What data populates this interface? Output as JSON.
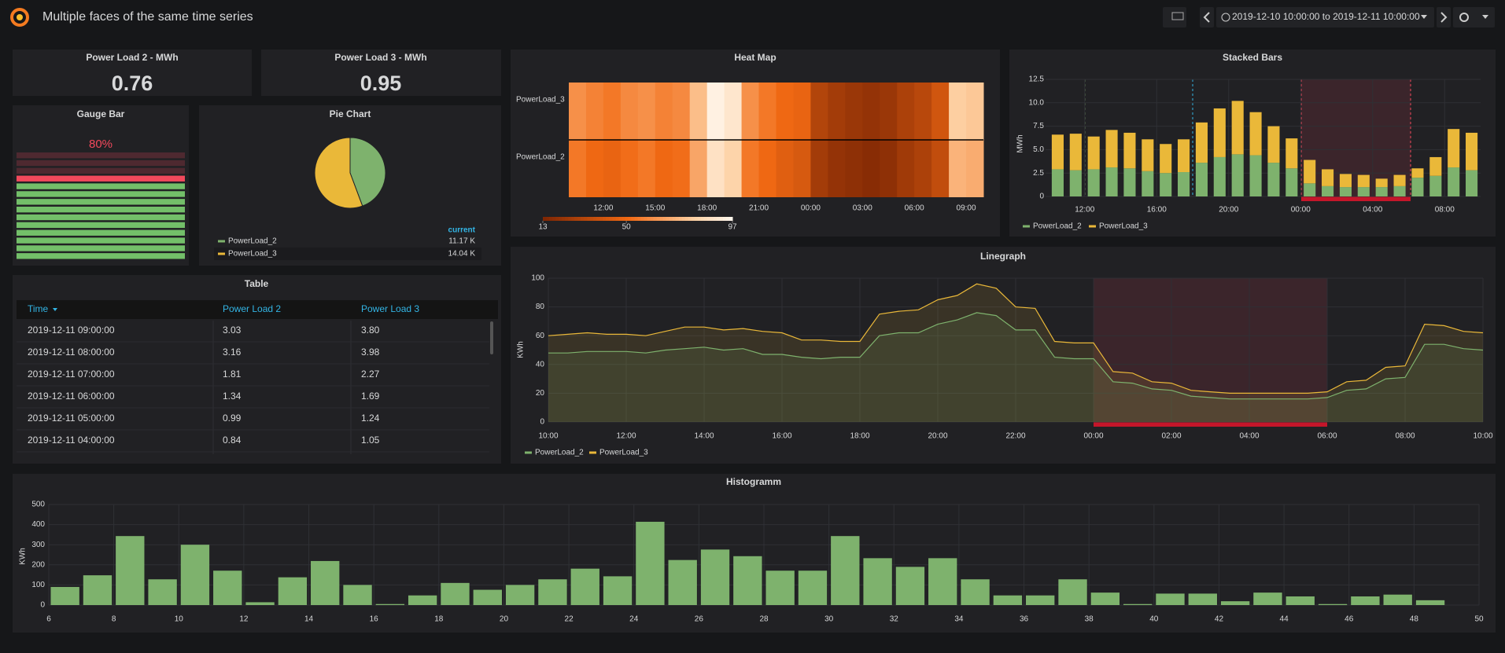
{
  "header": {
    "title": "Multiple faces of the same time series",
    "time_range": "2019-12-10 10:00:00 to 2019-12-11 10:00:00"
  },
  "stats": [
    {
      "title": "Power Load 2 - MWh",
      "value": 0.76
    },
    {
      "title": "Power Load 3 - MWh",
      "value": 0.95
    }
  ],
  "table": {
    "title": "Table",
    "columns": [
      "Time",
      "Power Load 2",
      "Power Load 3"
    ],
    "rows": [
      [
        "2019-12-11 09:00:00",
        "3.03",
        "3.80"
      ],
      [
        "2019-12-11 08:00:00",
        "3.16",
        "3.98"
      ],
      [
        "2019-12-11 07:00:00",
        "1.81",
        "2.27"
      ],
      [
        "2019-12-11 06:00:00",
        "1.34",
        "1.69"
      ],
      [
        "2019-12-11 05:00:00",
        "0.99",
        "1.24"
      ],
      [
        "2019-12-11 04:00:00",
        "0.84",
        "1.05"
      ]
    ]
  },
  "chart_data": [
    {
      "type": "bargauge",
      "title": "Gauge Bar",
      "values": [
        80
      ],
      "value_labels": [
        "80%"
      ],
      "ylim": [
        0,
        100
      ]
    },
    {
      "type": "pie",
      "title": "Pie Chart",
      "legend_header": "current",
      "categories": [
        "PowerLoad_2",
        "PowerLoad_3"
      ],
      "values": [
        11170,
        14040
      ],
      "value_labels": [
        "11.17 K",
        "14.04 K"
      ],
      "colors": [
        "#7eb26d",
        "#eab839"
      ]
    },
    {
      "type": "heatmap",
      "title": "Heat Map",
      "categories": [
        null,
        null,
        "12:00",
        null,
        null,
        "15:00",
        null,
        null,
        "18:00",
        null,
        null,
        "21:00",
        null,
        null,
        "00:00",
        null,
        null,
        "03:00",
        null,
        null,
        "06:00",
        null,
        null,
        "09:00"
      ],
      "series": [
        {
          "name": "PowerLoad_3",
          "values": [
            62,
            58,
            55,
            60,
            62,
            58,
            60,
            75,
            95,
            90,
            62,
            55,
            50,
            48,
            30,
            25,
            22,
            20,
            22,
            28,
            32,
            40,
            80,
            78
          ]
        },
        {
          "name": "PowerLoad_2",
          "values": [
            55,
            50,
            48,
            52,
            55,
            50,
            52,
            68,
            88,
            82,
            55,
            50,
            45,
            42,
            25,
            20,
            18,
            16,
            18,
            24,
            28,
            35,
            72,
            70
          ]
        }
      ],
      "zlim": [
        13,
        97
      ],
      "zticks": [
        13,
        50,
        97
      ]
    },
    {
      "type": "stacked_bar",
      "title": "Stacked Bars",
      "y_label": "MWh",
      "categories": [
        null,
        null,
        "12:00",
        null,
        null,
        null,
        "16:00",
        null,
        null,
        null,
        "20:00",
        null,
        null,
        null,
        "00:00",
        null,
        null,
        null,
        "04:00",
        null,
        null,
        null,
        "08:00",
        null
      ],
      "series": [
        {
          "name": "PowerLoad_2",
          "color": "#7eb26d",
          "values": [
            2.9,
            2.8,
            2.9,
            3.1,
            3.0,
            2.7,
            2.5,
            2.6,
            3.6,
            4.2,
            4.5,
            4.4,
            3.6,
            3.0,
            1.4,
            1.1,
            1.0,
            1.0,
            1.0,
            1.1,
            2.0,
            2.2,
            3.1,
            2.8
          ]
        },
        {
          "name": "PowerLoad_3",
          "color": "#eab839",
          "values": [
            3.7,
            3.9,
            3.5,
            4.0,
            3.8,
            3.4,
            3.1,
            3.5,
            4.3,
            5.2,
            5.7,
            4.6,
            3.9,
            3.2,
            2.5,
            1.8,
            1.4,
            1.3,
            0.9,
            1.2,
            1.0,
            2.0,
            4.1,
            4.0
          ]
        }
      ],
      "ylim": [
        0,
        12.5
      ],
      "yticks": [
        0,
        2.5,
        {
          "value": 5,
          "label": "5.0"
        },
        7.5,
        {
          "value": 10,
          "label": "10.0"
        },
        12.5
      ],
      "grid": true
    },
    {
      "type": "area_line",
      "title": "Linegraph",
      "y_label": "KWh",
      "categories": [
        "10:00",
        null,
        null,
        null,
        "12:00",
        null,
        null,
        null,
        "14:00",
        null,
        null,
        null,
        "16:00",
        null,
        null,
        null,
        "18:00",
        null,
        null,
        null,
        "20:00",
        null,
        null,
        null,
        "22:00",
        null,
        null,
        null,
        "00:00",
        null,
        null,
        null,
        "02:00",
        null,
        null,
        null,
        "04:00",
        null,
        null,
        null,
        "06:00",
        null,
        null,
        null,
        "08:00",
        null,
        null,
        null,
        "10:00"
      ],
      "series": [
        {
          "name": "PowerLoad_2",
          "color": "#7eb26d",
          "values": [
            48,
            48,
            49,
            49,
            49,
            48,
            50,
            51,
            52,
            50,
            51,
            47,
            47,
            45,
            44,
            45,
            45,
            60,
            62,
            62,
            68,
            71,
            76,
            74,
            64,
            64,
            45,
            44,
            44,
            28,
            27,
            23,
            22,
            18,
            17,
            16,
            16,
            16,
            16,
            16,
            17,
            22,
            23,
            30,
            31,
            54,
            54,
            51,
            50
          ]
        },
        {
          "name": "PowerLoad_3",
          "color": "#eab839",
          "values": [
            60,
            61,
            62,
            61,
            61,
            60,
            63,
            66,
            66,
            64,
            65,
            63,
            62,
            57,
            57,
            56,
            56,
            75,
            77,
            78,
            85,
            88,
            96,
            93,
            80,
            79,
            56,
            55,
            55,
            35,
            34,
            28,
            27,
            22,
            21,
            20,
            20,
            20,
            20,
            20,
            21,
            28,
            29,
            38,
            39,
            68,
            67,
            63,
            62
          ]
        }
      ],
      "ylim": [
        0,
        100
      ],
      "yticks": [
        0,
        20,
        40,
        60,
        80,
        100
      ],
      "grid": true
    },
    {
      "type": "histogram",
      "title": "Histogramm",
      "y_label": "KWh",
      "color": "#7eb26d",
      "bins": [
        6,
        7,
        8,
        9,
        10,
        11,
        12,
        13,
        14,
        15,
        16,
        17,
        18,
        19,
        20,
        21,
        22,
        23,
        24,
        25,
        26,
        27,
        28,
        29,
        30,
        31,
        32,
        33,
        34,
        35,
        36,
        37,
        38,
        39,
        40,
        41,
        42,
        43,
        44,
        45,
        46,
        47,
        48,
        49,
        50
      ],
      "values": [
        90,
        148,
        343,
        128,
        300,
        171,
        14,
        138,
        219,
        100,
        5,
        48,
        110,
        76,
        100,
        128,
        181,
        143,
        414,
        224,
        276,
        243,
        171,
        171,
        343,
        233,
        190,
        233,
        128,
        48,
        48,
        128,
        62,
        5,
        57,
        57,
        19,
        62,
        43,
        5,
        43,
        52,
        24,
        0
      ],
      "xlim": [
        6,
        50
      ],
      "xticks": [
        6,
        8,
        10,
        12,
        14,
        16,
        18,
        20,
        22,
        24,
        26,
        28,
        30,
        32,
        34,
        36,
        38,
        40,
        42,
        44,
        46,
        48,
        50
      ],
      "ylim": [
        0,
        500
      ],
      "yticks": [
        0,
        100,
        200,
        300,
        400,
        500
      ],
      "grid": true
    }
  ]
}
